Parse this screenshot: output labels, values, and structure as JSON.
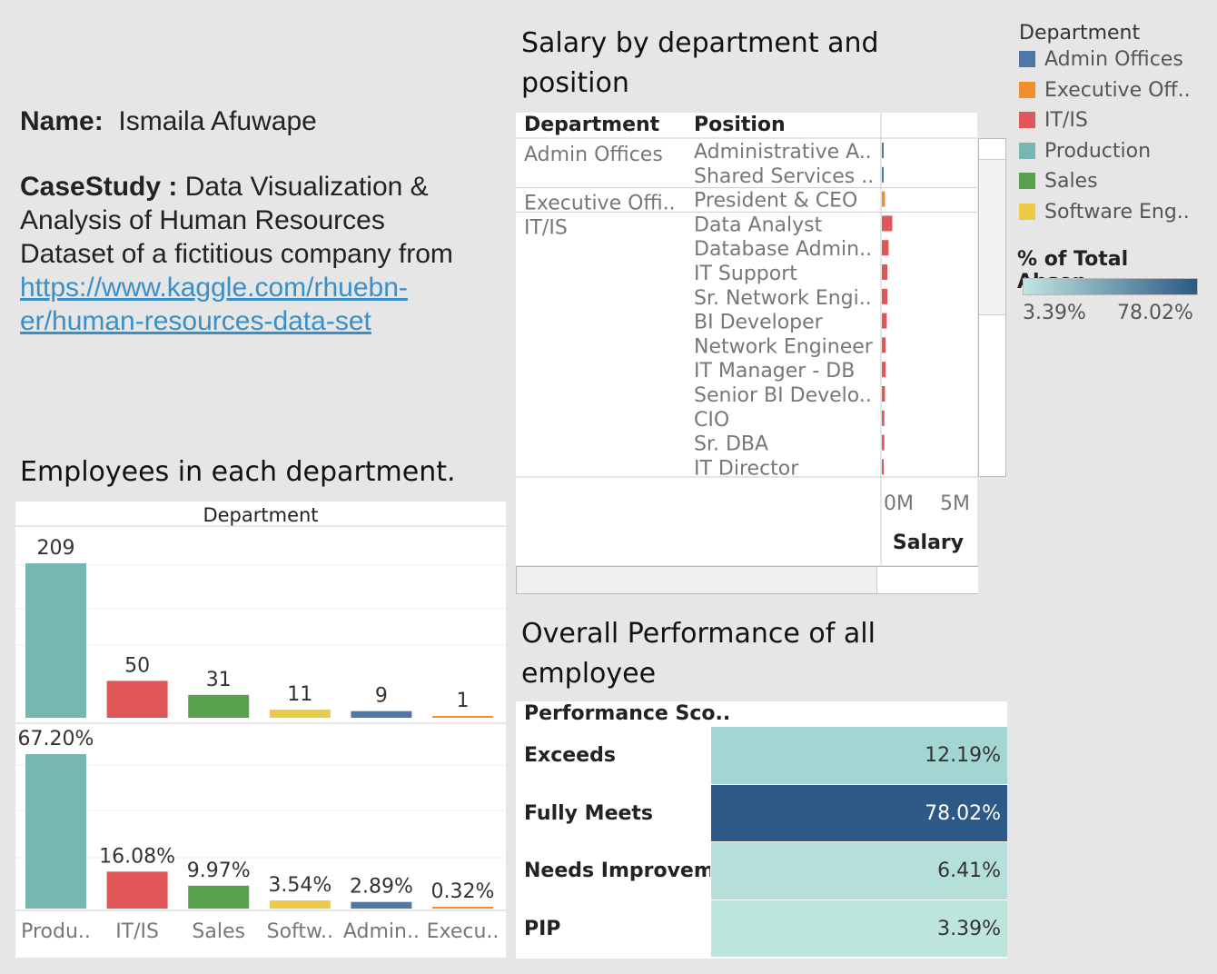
{
  "info": {
    "name_label": "Name:",
    "name_value": "Ismaila Afuwape",
    "case_label": "CaseStudy :",
    "case_line1": "Data Visualization &",
    "case_line2": "Analysis of Human Resources",
    "case_line3": "Dataset of a fictitious company from",
    "link_line1": "https://www.kaggle.com/rhuebn-",
    "link_line2": "er/human-resources-data-set"
  },
  "salary_panel": {
    "title_line1": "Salary by department and",
    "title_line2": "position",
    "col_department": "Department",
    "col_position": "Position",
    "axis_ticks": [
      "0M",
      "5M"
    ],
    "axis_title": "Salary",
    "rows": [
      {
        "department": "Admin Offices",
        "position": "Administrative A..",
        "color": "#4e79a7",
        "salary_m": 0.15
      },
      {
        "department": "",
        "position": "Shared Services ..",
        "color": "#4e79a7",
        "salary_m": 0.05
      },
      {
        "department": "Executive Offi..",
        "position": "President & CEO",
        "color": "#f28e2b",
        "salary_m": 0.25
      },
      {
        "department": "IT/IS",
        "position": "Data Analyst",
        "color": "#e15759",
        "salary_m": 0.85
      },
      {
        "department": "",
        "position": "Database Admin..",
        "color": "#e15759",
        "salary_m": 0.55
      },
      {
        "department": "",
        "position": "IT Support",
        "color": "#e15759",
        "salary_m": 0.45
      },
      {
        "department": "",
        "position": "Sr. Network Engi..",
        "color": "#e15759",
        "salary_m": 0.45
      },
      {
        "department": "",
        "position": "BI Developer",
        "color": "#e15759",
        "salary_m": 0.4
      },
      {
        "department": "",
        "position": "Network Engineer",
        "color": "#e15759",
        "salary_m": 0.3
      },
      {
        "department": "",
        "position": "IT Manager - DB",
        "color": "#e15759",
        "salary_m": 0.3
      },
      {
        "department": "",
        "position": "Senior BI Develo..",
        "color": "#e15759",
        "salary_m": 0.25
      },
      {
        "department": "",
        "position": "CIO",
        "color": "#e15759",
        "salary_m": 0.2
      },
      {
        "department": "",
        "position": "Sr. DBA",
        "color": "#e15759",
        "salary_m": 0.2
      },
      {
        "department": "",
        "position": "IT Director",
        "color": "#e15759",
        "salary_m": 0.15
      }
    ]
  },
  "legend": {
    "title": "Department",
    "items": [
      {
        "label": "Admin Offices",
        "color": "#4e79a7"
      },
      {
        "label": "Executive Off..",
        "color": "#f28e2b"
      },
      {
        "label": "IT/IS",
        "color": "#e15759"
      },
      {
        "label": "Production",
        "color": "#76b7b2"
      },
      {
        "label": "Sales",
        "color": "#59a14f"
      },
      {
        "label": "Software Eng..",
        "color": "#edc948"
      }
    ],
    "gradient_title": "% of Total Absen..",
    "gradient_min": "3.39%",
    "gradient_max": "78.02%",
    "gradient_colors": [
      "#bfe6e0",
      "#2c5985"
    ]
  },
  "employees_panel": {
    "title": "Employees in each department.",
    "header": "Department"
  },
  "performance_panel": {
    "title_line1": "Overall Performance of all",
    "title_line2": "employee",
    "header": "Performance Sco..",
    "rows": [
      {
        "label": "Exceeds",
        "value": "12.19%",
        "bg": "#a3d6d3",
        "fg": "#333333"
      },
      {
        "label": "Fully Meets",
        "value": "78.02%",
        "bg": "#2c5985",
        "fg": "#ffffff"
      },
      {
        "label": "Needs Improvem..",
        "value": "6.41%",
        "bg": "#b4e0d9",
        "fg": "#333333"
      },
      {
        "label": "PIP",
        "value": "3.39%",
        "bg": "#bde5dc",
        "fg": "#333333"
      }
    ]
  },
  "chart_data": [
    {
      "type": "bar",
      "title": "Employees in each department.",
      "categories": [
        "Produ..",
        "IT/IS",
        "Sales",
        "Softw..",
        "Admin..",
        "Execu.."
      ],
      "colors": [
        "#76b7b2",
        "#e15759",
        "#59a14f",
        "#edc948",
        "#4e79a7",
        "#f28e2b"
      ],
      "series": [
        {
          "values": [
            209,
            50,
            31,
            11,
            9,
            1
          ],
          "labels": [
            "209",
            "50",
            "31",
            "11",
            "9",
            "1"
          ]
        },
        {
          "values": [
            67.2,
            16.08,
            9.97,
            3.54,
            2.89,
            0.32
          ],
          "labels": [
            "67.20%",
            "16.08%",
            "9.97%",
            "3.54%",
            "2.89%",
            "0.32%"
          ]
        }
      ],
      "xlabel": "Department"
    },
    {
      "type": "bar",
      "title": "Salary by department and position",
      "xlabel": "Salary",
      "xlim": [
        0,
        5.5
      ],
      "orientation": "horizontal"
    },
    {
      "type": "table",
      "title": "Overall Performance of all employee",
      "categories": [
        "Exceeds",
        "Fully Meets",
        "Needs Improvem..",
        "PIP"
      ],
      "values": [
        12.19,
        78.02,
        6.41,
        3.39
      ]
    }
  ]
}
